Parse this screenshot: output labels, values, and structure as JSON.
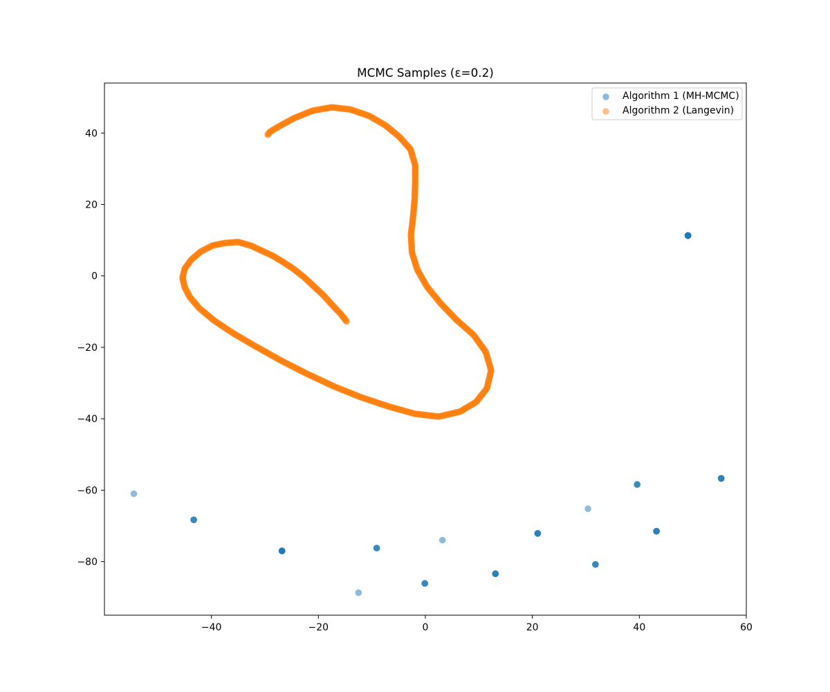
{
  "chart_data": {
    "type": "scatter",
    "title": "MCMC Samples (ε=0.2)",
    "xlabel": "",
    "ylabel": "",
    "xlim": [
      -60,
      60
    ],
    "ylim": [
      -95,
      54
    ],
    "xticks": [
      -40,
      -20,
      0,
      20,
      40,
      60
    ],
    "yticks": [
      -80,
      -60,
      -40,
      -20,
      0,
      20,
      40
    ],
    "xtick_labels": [
      "−40",
      "−20",
      "0",
      "20",
      "40",
      "60"
    ],
    "ytick_labels": [
      "−80",
      "−60",
      "−40",
      "−20",
      "0",
      "20",
      "40"
    ],
    "grid": false,
    "legend_position": "top-right",
    "series": [
      {
        "name": "Algorithm 1 (MH-MCMC)",
        "color": "#1f77b4",
        "alpha": 0.5,
        "points": [
          {
            "x": -54.5,
            "y": -61.0,
            "count": 1
          },
          {
            "x": -43.3,
            "y": -68.3,
            "count": 3
          },
          {
            "x": -26.8,
            "y": -77.0,
            "count": 6
          },
          {
            "x": -12.5,
            "y": -88.7,
            "count": 1
          },
          {
            "x": -9.1,
            "y": -76.2,
            "count": 3
          },
          {
            "x": -0.1,
            "y": -86.1,
            "count": 3
          },
          {
            "x": 3.2,
            "y": -74.0,
            "count": 1
          },
          {
            "x": 13.1,
            "y": -83.4,
            "count": 4
          },
          {
            "x": 21.0,
            "y": -72.1,
            "count": 4
          },
          {
            "x": 30.4,
            "y": -65.2,
            "count": 1
          },
          {
            "x": 31.8,
            "y": -80.8,
            "count": 3
          },
          {
            "x": 39.6,
            "y": -58.4,
            "count": 3
          },
          {
            "x": 43.2,
            "y": -71.5,
            "count": 4
          },
          {
            "x": 49.1,
            "y": 11.3,
            "count": 12
          },
          {
            "x": 55.3,
            "y": -56.7,
            "count": 4
          }
        ]
      },
      {
        "name": "Algorithm 2 (Langevin)",
        "color": "#ff7f0e",
        "alpha": 0.5,
        "path": [
          [
            -14.7,
            -12.8
          ],
          [
            -15.8,
            -10.7
          ],
          [
            -17.5,
            -8.0
          ],
          [
            -19.0,
            -5.5
          ],
          [
            -20.8,
            -3.0
          ],
          [
            -22.5,
            -0.6
          ],
          [
            -24.5,
            1.8
          ],
          [
            -26.5,
            3.8
          ],
          [
            -28.5,
            5.6
          ],
          [
            -30.5,
            7.0
          ],
          [
            -32.5,
            8.4
          ],
          [
            -35.0,
            9.5
          ],
          [
            -37.5,
            9.2
          ],
          [
            -39.8,
            8.5
          ],
          [
            -42.0,
            6.8
          ],
          [
            -43.8,
            4.5
          ],
          [
            -45.0,
            2.0
          ],
          [
            -45.4,
            -0.5
          ],
          [
            -45.0,
            -3.2
          ],
          [
            -44.0,
            -6.0
          ],
          [
            -42.3,
            -9.0
          ],
          [
            -39.5,
            -12.5
          ],
          [
            -36.0,
            -16.0
          ],
          [
            -32.0,
            -19.5
          ],
          [
            -27.0,
            -23.7
          ],
          [
            -22.0,
            -27.5
          ],
          [
            -17.0,
            -31.0
          ],
          [
            -12.0,
            -34.0
          ],
          [
            -7.0,
            -36.5
          ],
          [
            -2.0,
            -38.6
          ],
          [
            2.5,
            -39.4
          ],
          [
            6.5,
            -38.0
          ],
          [
            9.5,
            -35.3
          ],
          [
            11.5,
            -31.5
          ],
          [
            12.3,
            -26.5
          ],
          [
            11.3,
            -21.3
          ],
          [
            9.0,
            -16.5
          ],
          [
            5.8,
            -12.3
          ],
          [
            2.8,
            -7.6
          ],
          [
            0.3,
            -3.0
          ],
          [
            -1.5,
            1.7
          ],
          [
            -2.5,
            6.5
          ],
          [
            -2.7,
            11.5
          ],
          [
            -2.3,
            16.5
          ],
          [
            -2.0,
            21.5
          ],
          [
            -1.9,
            26.5
          ],
          [
            -1.9,
            31.0
          ],
          [
            -2.8,
            35.5
          ],
          [
            -4.9,
            39.0
          ],
          [
            -7.5,
            42.2
          ],
          [
            -10.5,
            44.8
          ],
          [
            -14.0,
            46.6
          ],
          [
            -17.5,
            47.2
          ],
          [
            -21.0,
            46.3
          ],
          [
            -24.5,
            44.2
          ],
          [
            -27.2,
            42.0
          ],
          [
            -29.0,
            40.4
          ],
          [
            -29.5,
            39.5
          ]
        ]
      }
    ]
  }
}
